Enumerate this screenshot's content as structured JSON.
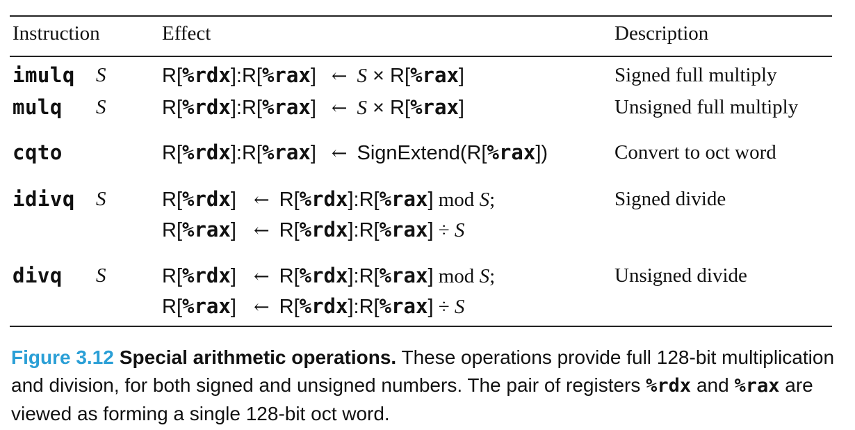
{
  "table": {
    "headers": {
      "instruction": "Instruction",
      "effect": "Effect",
      "description": "Description"
    },
    "rows": [
      {
        "op": "imulq",
        "operand": "S",
        "lines": [
          {
            "lhs_parts": [
              "R[",
              "%rdx",
              "]:R[",
              "%rax",
              "]"
            ],
            "arrow": "←",
            "rhs_pre_it": "S",
            "rhs_mid": " × R[",
            "rhs_reg": "%rax",
            "rhs_post": "]"
          }
        ],
        "description": "Signed full multiply"
      },
      {
        "op": "mulq",
        "operand": "S",
        "lines": [
          {
            "lhs_parts": [
              "R[",
              "%rdx",
              "]:R[",
              "%rax",
              "]"
            ],
            "arrow": "←",
            "rhs_pre_it": "S",
            "rhs_mid": " × R[",
            "rhs_reg": "%rax",
            "rhs_post": "]"
          }
        ],
        "description": "Unsigned full multiply"
      },
      {
        "op": "cqto",
        "operand": "",
        "lines": [
          {
            "lhs_parts": [
              "R[",
              "%rdx",
              "]:R[",
              "%rax",
              "]"
            ],
            "arrow": "←",
            "rhs_func": "SignExtend(R[",
            "rhs_reg": "%rax",
            "rhs_post": "])"
          }
        ],
        "description": "Convert to oct word"
      },
      {
        "op": "idivq",
        "operand": "S",
        "lines": [
          {
            "lhs_parts": [
              "R[",
              "%rdx",
              "]"
            ],
            "arrow": "←",
            "rhs_parts": [
              "R[",
              "%rdx",
              "]:R[",
              "%rax",
              "]"
            ],
            "rhs_tail": " mod ",
            "rhs_tail_it": "S",
            "rhs_end": ";"
          },
          {
            "lhs_parts": [
              "R[",
              "%rax",
              "]"
            ],
            "arrow": "←",
            "rhs_parts": [
              "R[",
              "%rdx",
              "]:R[",
              "%rax",
              "]"
            ],
            "rhs_tail": " ÷ ",
            "rhs_tail_it": "S",
            "rhs_end": ""
          }
        ],
        "description": "Signed divide"
      },
      {
        "op": "divq",
        "operand": "S",
        "lines": [
          {
            "lhs_parts": [
              "R[",
              "%rdx",
              "]"
            ],
            "arrow": "←",
            "rhs_parts": [
              "R[",
              "%rdx",
              "]:R[",
              "%rax",
              "]"
            ],
            "rhs_tail": " mod ",
            "rhs_tail_it": "S",
            "rhs_end": ";"
          },
          {
            "lhs_parts": [
              "R[",
              "%rax",
              "]"
            ],
            "arrow": "←",
            "rhs_parts": [
              "R[",
              "%rdx",
              "]:R[",
              "%rax",
              "]"
            ],
            "rhs_tail": " ÷ ",
            "rhs_tail_it": "S",
            "rhs_end": ""
          }
        ],
        "description": "Unsigned divide"
      }
    ]
  },
  "caption": {
    "number": "Figure 3.12",
    "title": "Special arithmetic operations.",
    "text1": " These operations provide full 128-bit multiplication and division, for both signed and unsigned numbers. The pair of registers ",
    "reg1": "%rdx",
    "text2": " and ",
    "reg2": "%rax",
    "text3": " are viewed as forming a single 128-bit oct word."
  },
  "colors": {
    "figure_number": "#2a9fd6",
    "text": "#111111"
  }
}
